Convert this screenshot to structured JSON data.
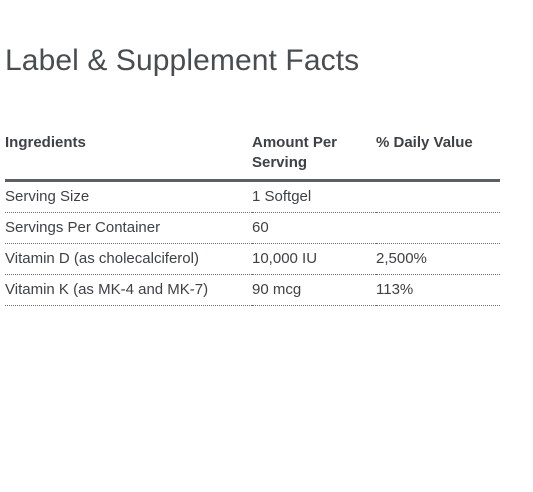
{
  "title": "Label & Supplement Facts",
  "table": {
    "headers": {
      "ingredients": "Ingredients",
      "amount_line1": "Amount Per",
      "amount_line2": "Serving",
      "daily_value": "% Daily Value"
    },
    "rows": [
      {
        "ingredient": "Serving Size",
        "amount": "1 Softgel",
        "daily_value": ""
      },
      {
        "ingredient": "Servings Per Container",
        "amount": "60",
        "daily_value": ""
      },
      {
        "ingredient": "Vitamin D (as cholecalciferol)",
        "amount": "10,000 IU",
        "daily_value": "2,500%"
      },
      {
        "ingredient": "Vitamin K (as MK-4 and MK-7)",
        "amount": "90 mcg",
        "daily_value": "113%"
      }
    ]
  }
}
